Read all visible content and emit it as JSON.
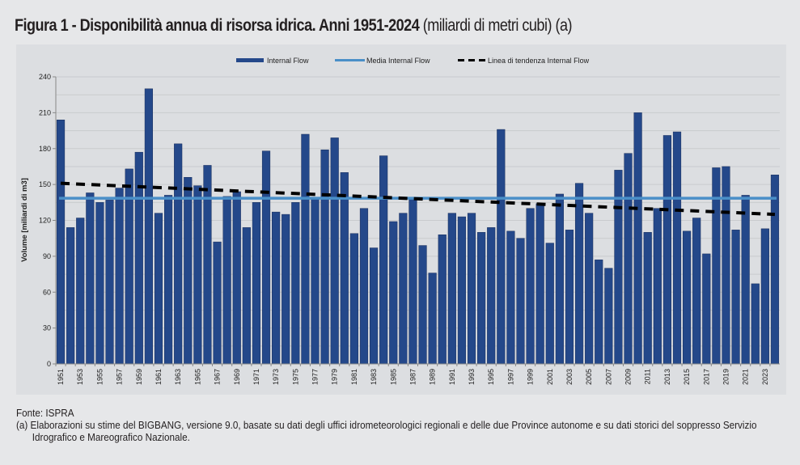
{
  "title": {
    "bold": "Figura 1 - Disponibilità annua di risorsa idrica. Anni 1951-2024",
    "normal": " (miliardi di metri cubi) (a)"
  },
  "footer": {
    "source": "Fonte: ISPRA",
    "note": "(a) Elaborazioni su stime del BIGBANG, versione 9.0, basate su dati degli uffici idrometeorologici regionali e delle due Province autonome e su dati storici del soppresso Servizio Idrografico e Mareografico Nazionale."
  },
  "colors": {
    "bar": "#24488a",
    "mean": "#4a8fc8",
    "trend": "#000000",
    "grid": "#c9cbce"
  },
  "chart_data": {
    "type": "bar",
    "title": "Figura 1 - Disponibilità annua di risorsa idrica. Anni 1951-2024 (miliardi di metri cubi) (a)",
    "xlabel": "",
    "ylabel": "Volume [miliardi di m3]",
    "ylim": [
      0,
      240
    ],
    "yticks": [
      0,
      30,
      60,
      90,
      120,
      150,
      180,
      210,
      240
    ],
    "grid": true,
    "legend_position": "top",
    "legend": [
      "Internal Flow",
      "Media Internal Flow",
      "Linea di tendenza Internal Flow"
    ],
    "categories": [
      1951,
      1952,
      1953,
      1954,
      1955,
      1956,
      1957,
      1958,
      1959,
      1960,
      1961,
      1962,
      1963,
      1964,
      1965,
      1966,
      1967,
      1968,
      1969,
      1970,
      1971,
      1972,
      1973,
      1974,
      1975,
      1976,
      1977,
      1978,
      1979,
      1980,
      1981,
      1982,
      1983,
      1984,
      1985,
      1986,
      1987,
      1988,
      1989,
      1990,
      1991,
      1992,
      1993,
      1994,
      1995,
      1996,
      1997,
      1998,
      1999,
      2000,
      2001,
      2002,
      2003,
      2004,
      2005,
      2006,
      2007,
      2008,
      2009,
      2010,
      2011,
      2012,
      2013,
      2014,
      2015,
      2016,
      2017,
      2018,
      2019,
      2020,
      2021,
      2022,
      2023,
      2024
    ],
    "xtick_labels": [
      "1951",
      "1953",
      "1955",
      "1957",
      "1959",
      "1961",
      "1963",
      "1965",
      "1967",
      "1969",
      "1971",
      "1973",
      "1975",
      "1977",
      "1979",
      "1981",
      "1983",
      "1985",
      "1987",
      "1989",
      "1991",
      "1993",
      "1995",
      "1997",
      "1999",
      "2001",
      "2003",
      "2005",
      "2007",
      "2009",
      "2011",
      "2013",
      "2015",
      "2017",
      "2019",
      "2021",
      "2023"
    ],
    "series": [
      {
        "name": "Internal Flow",
        "type": "bar",
        "values": [
          204,
          114,
          122,
          143,
          135,
          137,
          147,
          163,
          177,
          230,
          126,
          141,
          184,
          156,
          149,
          166,
          102,
          140,
          144,
          114,
          135,
          178,
          127,
          125,
          135,
          192,
          139,
          179,
          189,
          160,
          109,
          130,
          97,
          174,
          119,
          126,
          139,
          99,
          76,
          108,
          126,
          123,
          126,
          110,
          114,
          196,
          111,
          105,
          130,
          134,
          101,
          142,
          112,
          151,
          126,
          87,
          80,
          162,
          176,
          210,
          110,
          130,
          191,
          194,
          111,
          122,
          92,
          164,
          165,
          112,
          141,
          67,
          113,
          158
        ]
      },
      {
        "name": "Media Internal Flow",
        "type": "line",
        "value": 138.5
      },
      {
        "name": "Linea di tendenza Internal Flow",
        "type": "line",
        "start": {
          "x": 1951,
          "y": 151
        },
        "end": {
          "x": 2024,
          "y": 125
        }
      }
    ]
  }
}
